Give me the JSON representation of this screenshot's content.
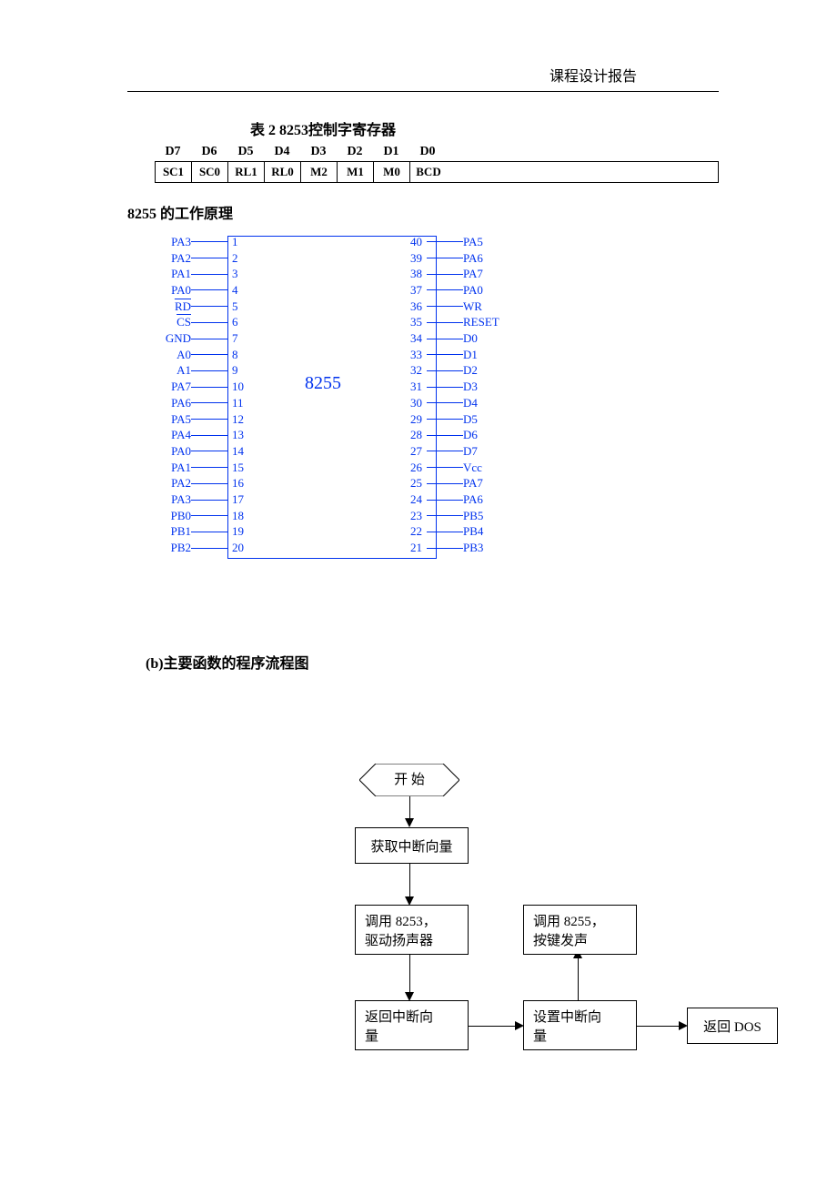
{
  "header": {
    "title": "课程设计报告"
  },
  "table2": {
    "title": "表 2  8253控制字寄存器",
    "headers": [
      "D7",
      "D6",
      "D5",
      "D4",
      "D3",
      "D2",
      "D1",
      "D0"
    ],
    "cells": [
      "SC1",
      "SC0",
      "RL1",
      "RL0",
      "M2",
      "M1",
      "M0",
      "BCD"
    ]
  },
  "chip": {
    "section_title": "8255 的工作原理",
    "label": "8255",
    "color": "#0032ee",
    "left_pins": [
      {
        "label": "PA3",
        "num": "1"
      },
      {
        "label": "PA2",
        "num": "2"
      },
      {
        "label": "PA1",
        "num": "3"
      },
      {
        "label": "PA0",
        "num": "4"
      },
      {
        "label": "RD",
        "num": "5",
        "overline": true
      },
      {
        "label": "CS",
        "num": "6",
        "overline": true
      },
      {
        "label": "GND",
        "num": "7"
      },
      {
        "label": "A0",
        "num": "8"
      },
      {
        "label": "A1",
        "num": "9"
      },
      {
        "label": "PA7",
        "num": "10"
      },
      {
        "label": "PA6",
        "num": "11"
      },
      {
        "label": "PA5",
        "num": "12"
      },
      {
        "label": "PA4",
        "num": "13"
      },
      {
        "label": "PA0",
        "num": "14"
      },
      {
        "label": "PA1",
        "num": "15"
      },
      {
        "label": "PA2",
        "num": "16"
      },
      {
        "label": "PA3",
        "num": "17"
      },
      {
        "label": "PB0",
        "num": "18"
      },
      {
        "label": "PB1",
        "num": "19"
      },
      {
        "label": "PB2",
        "num": "20"
      }
    ],
    "right_pins": [
      {
        "label": "PA5",
        "num": "40"
      },
      {
        "label": "PA6",
        "num": "39"
      },
      {
        "label": "PA7",
        "num": "38"
      },
      {
        "label": "PA0",
        "num": "37"
      },
      {
        "label": "WR",
        "num": "36"
      },
      {
        "label": "RESET",
        "num": "35"
      },
      {
        "label": "D0",
        "num": "34"
      },
      {
        "label": "D1",
        "num": "33"
      },
      {
        "label": "D2",
        "num": "32"
      },
      {
        "label": "D3",
        "num": "31"
      },
      {
        "label": "D4",
        "num": "30"
      },
      {
        "label": "D5",
        "num": "29"
      },
      {
        "label": "D6",
        "num": "28"
      },
      {
        "label": "D7",
        "num": "27"
      },
      {
        "label": "Vcc",
        "num": "26"
      },
      {
        "label": "PA7",
        "num": "25"
      },
      {
        "label": "PA6",
        "num": "24"
      },
      {
        "label": "PB5",
        "num": "23"
      },
      {
        "label": "PB4",
        "num": "22"
      },
      {
        "label": "PB3",
        "num": "21"
      }
    ]
  },
  "flowchart": {
    "title": "(b)主要函数的程序流程图",
    "nodes": {
      "start": "开  始",
      "n1": "获取中断向量",
      "n2": "调用 8253，\n驱动扬声器",
      "n3": "返回中断向\n量",
      "n4": "设置中断向\n量",
      "n5": "调用 8255，\n按键发声",
      "n6": "返回 DOS"
    }
  }
}
